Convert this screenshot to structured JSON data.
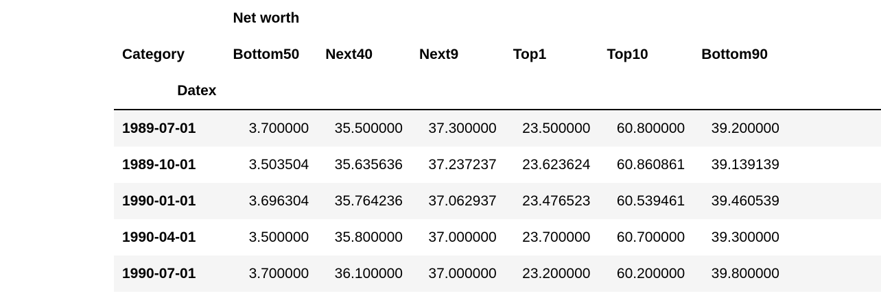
{
  "table": {
    "column_level_name": "Net worth",
    "columns_name_label": "Category",
    "index_name": "Datex",
    "columns": [
      "Bottom50",
      "Next40",
      "Next9",
      "Top1",
      "Top10",
      "Bottom90"
    ],
    "rows": [
      {
        "index": "1989-07-01",
        "values": [
          "3.700000",
          "35.500000",
          "37.300000",
          "23.500000",
          "60.800000",
          "39.200000"
        ]
      },
      {
        "index": "1989-10-01",
        "values": [
          "3.503504",
          "35.635636",
          "37.237237",
          "23.623624",
          "60.860861",
          "39.139139"
        ]
      },
      {
        "index": "1990-01-01",
        "values": [
          "3.696304",
          "35.764236",
          "37.062937",
          "23.476523",
          "60.539461",
          "39.460539"
        ]
      },
      {
        "index": "1990-04-01",
        "values": [
          "3.500000",
          "35.800000",
          "37.000000",
          "23.700000",
          "60.700000",
          "39.300000"
        ]
      },
      {
        "index": "1990-07-01",
        "values": [
          "3.700000",
          "36.100000",
          "37.000000",
          "23.200000",
          "60.200000",
          "39.800000"
        ]
      }
    ]
  }
}
